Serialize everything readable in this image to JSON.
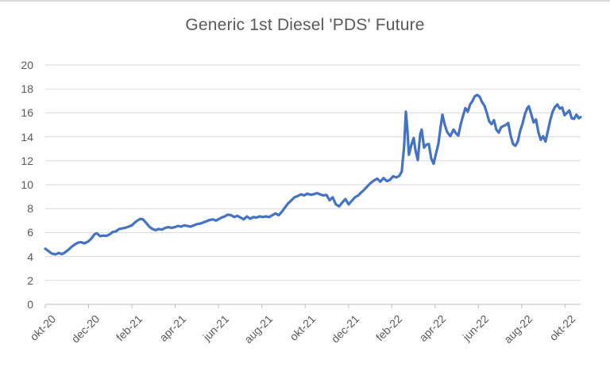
{
  "chart_data": {
    "type": "line",
    "title": "Generic 1st Diesel 'PDS' Future",
    "grid": "horizontal",
    "legend": "none",
    "colors": {
      "line": "#4472C4",
      "grid": "#D9D9D9",
      "axis": "#BFBFBF",
      "text": "#595959",
      "background": "#FFFFFF",
      "top_edge": "#D9D9D9"
    },
    "x_axis": {
      "tick_labels": [
        "okt-20",
        "dec-20",
        "feb-21",
        "apr-21",
        "jun-21",
        "aug-21",
        "okt-21",
        "dec-21",
        "feb-22",
        "apr-22",
        "jun-22",
        "aug-22",
        "okt-22"
      ],
      "tick_step_months": 2,
      "range": [
        0,
        24.72
      ]
    },
    "y_axis": {
      "ticks": [
        0,
        2,
        4,
        6,
        8,
        10,
        12,
        14,
        16,
        18,
        20
      ],
      "range": [
        0,
        20
      ]
    },
    "series": [
      {
        "name": "Generic 1st Diesel 'PDS' Future",
        "color": "#4472C4",
        "points": [
          [
            0.0,
            4.65
          ],
          [
            0.15,
            4.45
          ],
          [
            0.29,
            4.25
          ],
          [
            0.48,
            4.18
          ],
          [
            0.62,
            4.3
          ],
          [
            0.77,
            4.2
          ],
          [
            0.92,
            4.35
          ],
          [
            1.06,
            4.55
          ],
          [
            1.21,
            4.8
          ],
          [
            1.36,
            5.0
          ],
          [
            1.5,
            5.15
          ],
          [
            1.65,
            5.2
          ],
          [
            1.8,
            5.1
          ],
          [
            1.98,
            5.25
          ],
          [
            2.13,
            5.5
          ],
          [
            2.27,
            5.85
          ],
          [
            2.38,
            5.95
          ],
          [
            2.53,
            5.7
          ],
          [
            2.68,
            5.75
          ],
          [
            2.82,
            5.72
          ],
          [
            2.97,
            5.85
          ],
          [
            3.12,
            6.05
          ],
          [
            3.26,
            6.1
          ],
          [
            3.41,
            6.3
          ],
          [
            3.56,
            6.35
          ],
          [
            3.7,
            6.4
          ],
          [
            3.85,
            6.5
          ],
          [
            4.0,
            6.6
          ],
          [
            4.14,
            6.85
          ],
          [
            4.29,
            7.05
          ],
          [
            4.4,
            7.15
          ],
          [
            4.51,
            7.1
          ],
          [
            4.66,
            6.8
          ],
          [
            4.8,
            6.5
          ],
          [
            4.95,
            6.3
          ],
          [
            5.1,
            6.2
          ],
          [
            5.24,
            6.3
          ],
          [
            5.39,
            6.25
          ],
          [
            5.54,
            6.4
          ],
          [
            5.68,
            6.45
          ],
          [
            5.83,
            6.4
          ],
          [
            5.98,
            6.45
          ],
          [
            6.12,
            6.55
          ],
          [
            6.27,
            6.5
          ],
          [
            6.42,
            6.6
          ],
          [
            6.56,
            6.55
          ],
          [
            6.71,
            6.5
          ],
          [
            6.86,
            6.6
          ],
          [
            7.0,
            6.7
          ],
          [
            7.15,
            6.75
          ],
          [
            7.3,
            6.85
          ],
          [
            7.44,
            6.95
          ],
          [
            7.59,
            7.05
          ],
          [
            7.74,
            7.1
          ],
          [
            7.88,
            7.0
          ],
          [
            7.99,
            7.1
          ],
          [
            8.14,
            7.25
          ],
          [
            8.29,
            7.35
          ],
          [
            8.43,
            7.5
          ],
          [
            8.58,
            7.45
          ],
          [
            8.73,
            7.3
          ],
          [
            8.87,
            7.4
          ],
          [
            9.02,
            7.25
          ],
          [
            9.17,
            7.1
          ],
          [
            9.31,
            7.35
          ],
          [
            9.46,
            7.15
          ],
          [
            9.61,
            7.3
          ],
          [
            9.75,
            7.25
          ],
          [
            9.9,
            7.35
          ],
          [
            10.05,
            7.3
          ],
          [
            10.19,
            7.35
          ],
          [
            10.34,
            7.3
          ],
          [
            10.49,
            7.45
          ],
          [
            10.63,
            7.6
          ],
          [
            10.78,
            7.45
          ],
          [
            10.93,
            7.75
          ],
          [
            11.07,
            8.1
          ],
          [
            11.22,
            8.45
          ],
          [
            11.37,
            8.7
          ],
          [
            11.51,
            8.95
          ],
          [
            11.66,
            9.05
          ],
          [
            11.81,
            9.2
          ],
          [
            11.95,
            9.1
          ],
          [
            12.1,
            9.25
          ],
          [
            12.25,
            9.15
          ],
          [
            12.39,
            9.2
          ],
          [
            12.54,
            9.3
          ],
          [
            12.69,
            9.2
          ],
          [
            12.83,
            9.1
          ],
          [
            12.98,
            9.15
          ],
          [
            13.13,
            8.7
          ],
          [
            13.27,
            8.95
          ],
          [
            13.42,
            8.35
          ],
          [
            13.57,
            8.2
          ],
          [
            13.71,
            8.5
          ],
          [
            13.86,
            8.8
          ],
          [
            14.01,
            8.35
          ],
          [
            14.15,
            8.65
          ],
          [
            14.3,
            8.95
          ],
          [
            14.45,
            9.1
          ],
          [
            14.59,
            9.35
          ],
          [
            14.74,
            9.6
          ],
          [
            14.89,
            9.9
          ],
          [
            15.03,
            10.15
          ],
          [
            15.18,
            10.35
          ],
          [
            15.33,
            10.5
          ],
          [
            15.47,
            10.25
          ],
          [
            15.62,
            10.55
          ],
          [
            15.77,
            10.3
          ],
          [
            15.91,
            10.4
          ],
          [
            16.06,
            10.7
          ],
          [
            16.21,
            10.6
          ],
          [
            16.35,
            10.75
          ],
          [
            16.46,
            11.1
          ],
          [
            16.57,
            13.2
          ],
          [
            16.65,
            16.1
          ],
          [
            16.72,
            14.6
          ],
          [
            16.79,
            12.5
          ],
          [
            16.9,
            13.3
          ],
          [
            17.01,
            13.9
          ],
          [
            17.09,
            12.9
          ],
          [
            17.2,
            12.05
          ],
          [
            17.31,
            14.2
          ],
          [
            17.38,
            14.6
          ],
          [
            17.49,
            13.1
          ],
          [
            17.6,
            13.35
          ],
          [
            17.71,
            13.4
          ],
          [
            17.82,
            12.2
          ],
          [
            17.93,
            11.75
          ],
          [
            18.04,
            12.6
          ],
          [
            18.15,
            13.4
          ],
          [
            18.26,
            14.9
          ],
          [
            18.34,
            15.85
          ],
          [
            18.45,
            15.0
          ],
          [
            18.56,
            14.4
          ],
          [
            18.7,
            14.05
          ],
          [
            18.85,
            14.6
          ],
          [
            18.96,
            14.3
          ],
          [
            19.07,
            14.1
          ],
          [
            19.18,
            15.0
          ],
          [
            19.29,
            15.75
          ],
          [
            19.4,
            16.4
          ],
          [
            19.51,
            16.1
          ],
          [
            19.62,
            16.7
          ],
          [
            19.73,
            17.0
          ],
          [
            19.84,
            17.4
          ],
          [
            19.95,
            17.5
          ],
          [
            20.06,
            17.35
          ],
          [
            20.17,
            16.9
          ],
          [
            20.28,
            16.6
          ],
          [
            20.39,
            16.0
          ],
          [
            20.5,
            15.3
          ],
          [
            20.61,
            15.05
          ],
          [
            20.72,
            15.4
          ],
          [
            20.83,
            14.6
          ],
          [
            20.94,
            14.35
          ],
          [
            21.05,
            14.8
          ],
          [
            21.16,
            14.9
          ],
          [
            21.27,
            15.0
          ],
          [
            21.38,
            15.15
          ],
          [
            21.49,
            14.1
          ],
          [
            21.6,
            13.4
          ],
          [
            21.71,
            13.25
          ],
          [
            21.82,
            13.6
          ],
          [
            21.93,
            14.5
          ],
          [
            22.04,
            15.1
          ],
          [
            22.15,
            15.9
          ],
          [
            22.26,
            16.4
          ],
          [
            22.33,
            16.55
          ],
          [
            22.44,
            15.9
          ],
          [
            22.55,
            15.2
          ],
          [
            22.66,
            15.45
          ],
          [
            22.77,
            14.4
          ],
          [
            22.88,
            13.75
          ],
          [
            22.99,
            14.05
          ],
          [
            23.1,
            13.6
          ],
          [
            23.21,
            14.5
          ],
          [
            23.32,
            15.4
          ],
          [
            23.43,
            16.1
          ],
          [
            23.54,
            16.5
          ],
          [
            23.65,
            16.7
          ],
          [
            23.76,
            16.35
          ],
          [
            23.87,
            16.45
          ],
          [
            23.98,
            15.8
          ],
          [
            24.09,
            16.0
          ],
          [
            24.2,
            16.2
          ],
          [
            24.31,
            15.55
          ],
          [
            24.42,
            15.5
          ],
          [
            24.53,
            15.85
          ],
          [
            24.64,
            15.55
          ],
          [
            24.72,
            15.65
          ]
        ]
      }
    ]
  }
}
